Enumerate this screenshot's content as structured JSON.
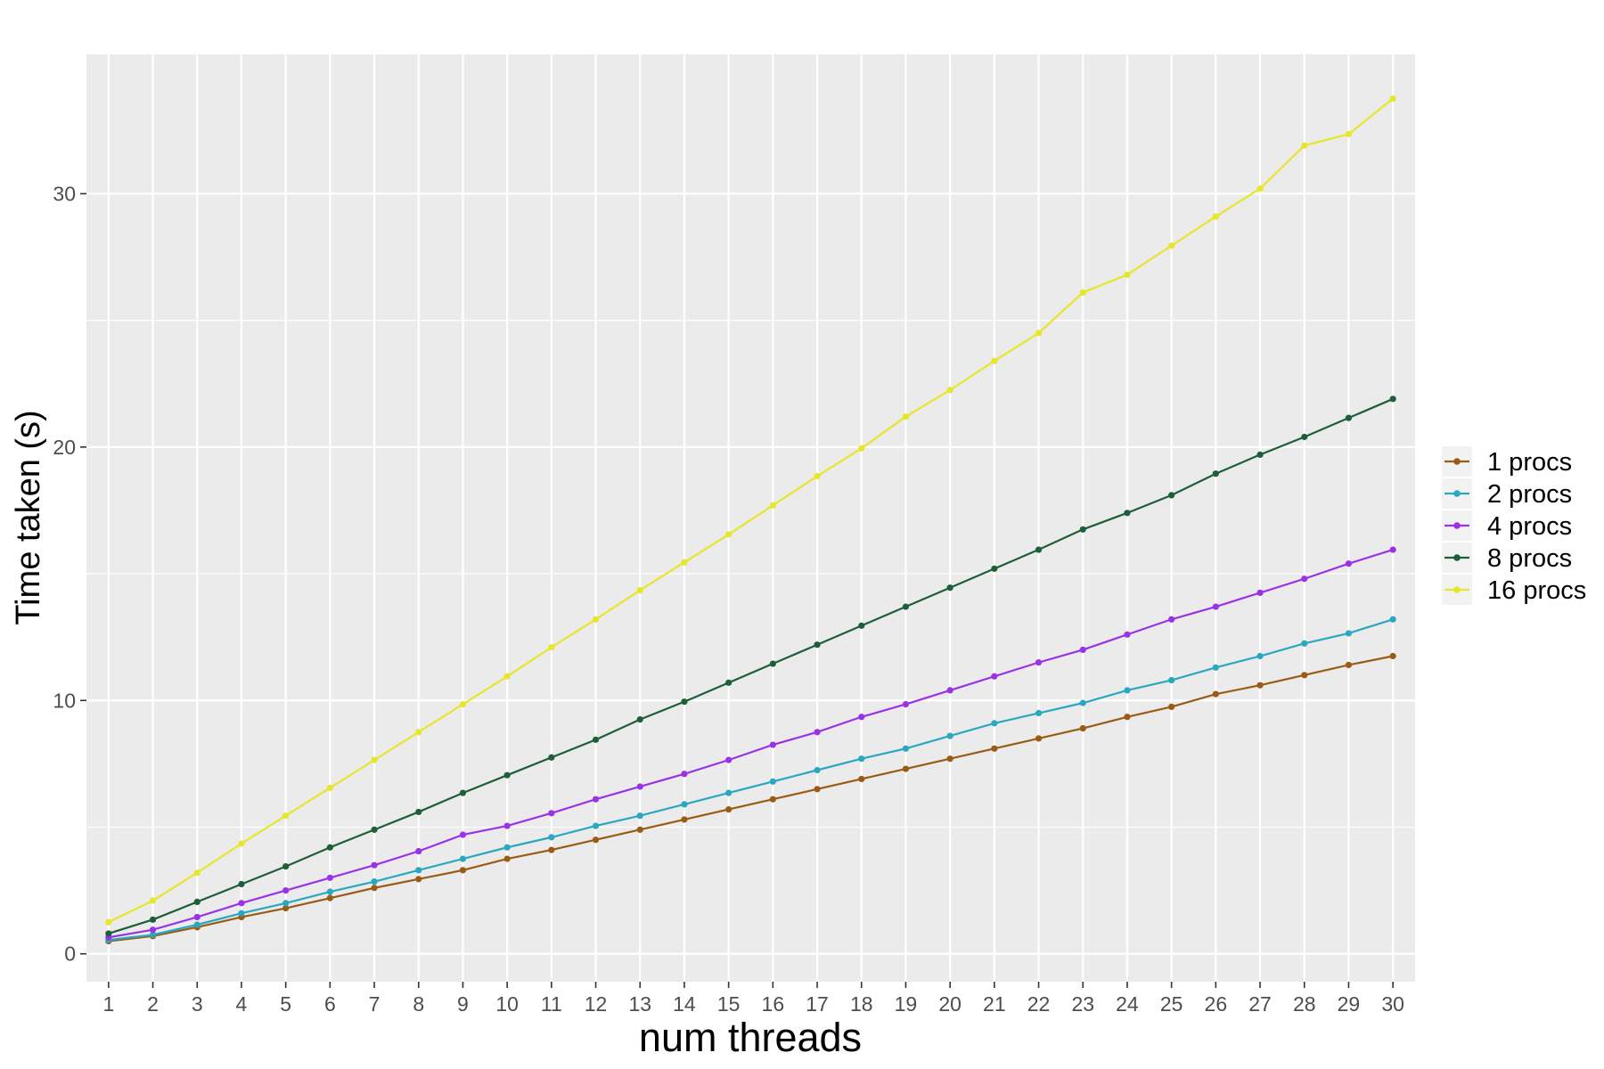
{
  "chart_data": {
    "type": "line",
    "title": "",
    "xlabel": "num threads",
    "ylabel": "Time taken (s)",
    "x": [
      1,
      2,
      3,
      4,
      5,
      6,
      7,
      8,
      9,
      10,
      11,
      12,
      13,
      14,
      15,
      16,
      17,
      18,
      19,
      20,
      21,
      22,
      23,
      24,
      25,
      26,
      27,
      28,
      29,
      30
    ],
    "xlim": [
      0.5,
      30.5
    ],
    "ylim": [
      -1.1,
      35.5
    ],
    "y_ticks": [
      0,
      10,
      20,
      30
    ],
    "y_tick_labels": [
      "0",
      "10",
      "20",
      "30"
    ],
    "x_tick_labels": [
      "1",
      "2",
      "3",
      "4",
      "5",
      "6",
      "7",
      "8",
      "9",
      "10",
      "11",
      "12",
      "13",
      "14",
      "15",
      "16",
      "17",
      "18",
      "19",
      "20",
      "21",
      "22",
      "23",
      "24",
      "25",
      "26",
      "27",
      "28",
      "29",
      "30"
    ],
    "grid": true,
    "legend_position": "right",
    "series": [
      {
        "name": "1 procs",
        "color": "#9a5b14",
        "values": [
          0.5,
          0.7,
          1.05,
          1.45,
          1.8,
          2.2,
          2.6,
          2.95,
          3.3,
          3.75,
          4.1,
          4.5,
          4.9,
          5.3,
          5.7,
          6.1,
          6.5,
          6.9,
          7.3,
          7.7,
          8.1,
          8.5,
          8.9,
          9.35,
          9.75,
          10.25,
          10.6,
          11.0,
          11.4,
          11.75
        ]
      },
      {
        "name": "2 procs",
        "color": "#2aa8c0",
        "values": [
          0.55,
          0.75,
          1.15,
          1.6,
          2.0,
          2.45,
          2.85,
          3.3,
          3.75,
          4.2,
          4.6,
          5.05,
          5.45,
          5.9,
          6.35,
          6.8,
          7.25,
          7.7,
          8.1,
          8.6,
          9.1,
          9.5,
          9.9,
          10.4,
          10.8,
          11.3,
          11.75,
          12.25,
          12.65,
          13.2
        ]
      },
      {
        "name": "4 procs",
        "color": "#9a33e6",
        "values": [
          0.65,
          0.95,
          1.45,
          2.0,
          2.5,
          3.0,
          3.5,
          4.05,
          4.7,
          5.05,
          5.55,
          6.1,
          6.6,
          7.1,
          7.65,
          8.25,
          8.75,
          9.35,
          9.85,
          10.4,
          10.95,
          11.5,
          12.0,
          12.6,
          13.2,
          13.7,
          14.25,
          14.8,
          15.4,
          15.95
        ]
      },
      {
        "name": "8 procs",
        "color": "#1e5e38",
        "values": [
          0.8,
          1.35,
          2.05,
          2.75,
          3.45,
          4.2,
          4.9,
          5.6,
          6.35,
          7.05,
          7.75,
          8.45,
          9.25,
          9.95,
          10.7,
          11.45,
          12.2,
          12.95,
          13.7,
          14.45,
          15.2,
          15.95,
          16.75,
          17.4,
          18.1,
          18.95,
          19.7,
          20.4,
          21.15,
          21.9
        ]
      },
      {
        "name": "16 procs",
        "color": "#e6e62a",
        "values": [
          1.25,
          2.1,
          3.2,
          4.35,
          5.45,
          6.55,
          7.65,
          8.75,
          9.85,
          10.95,
          12.1,
          13.2,
          14.35,
          15.45,
          16.55,
          17.7,
          18.85,
          19.95,
          21.2,
          22.25,
          23.4,
          24.5,
          26.1,
          26.8,
          27.95,
          29.1,
          30.2,
          31.9,
          32.35,
          33.75
        ]
      }
    ]
  }
}
